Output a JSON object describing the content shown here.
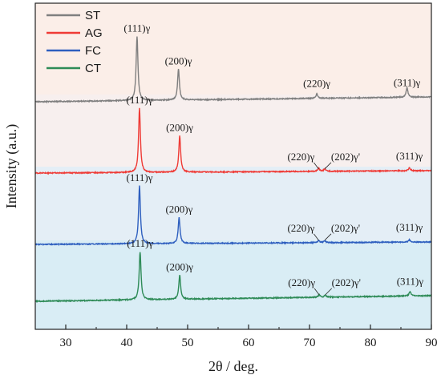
{
  "chart_data": {
    "type": "line",
    "xlabel": "2θ / deg.",
    "ylabel": "Intensity (a.u.)",
    "xlim": [
      25,
      90
    ],
    "xticks": [
      "30",
      "40",
      "50",
      "60",
      "70",
      "80",
      "90"
    ],
    "xtick_values": [
      30,
      40,
      50,
      60,
      70,
      80,
      90
    ],
    "legend_position": "top-left",
    "grid": false,
    "background_bands": [
      {
        "color": "#fbeee8",
        "behind": "ST"
      },
      {
        "color": "#f7efee",
        "behind": "AG"
      },
      {
        "color": "#e4eef6",
        "behind": "FC"
      },
      {
        "color": "#d9edf5",
        "behind": "CT"
      }
    ],
    "series": [
      {
        "name": "ST",
        "color": "#7f7f7f",
        "peaks": [
          {
            "x": 41.7,
            "label": "(111)γ",
            "height": 1.0
          },
          {
            "x": 48.5,
            "label": "(200)γ",
            "height": 0.48
          },
          {
            "x": 71.2,
            "label": "(220)γ",
            "height": 0.07
          },
          {
            "x": 86.0,
            "label": "(311)γ",
            "height": 0.15
          }
        ]
      },
      {
        "name": "AG",
        "color": "#ef3b36",
        "peaks": [
          {
            "x": 42.1,
            "label": "(111)γ",
            "height": 1.0
          },
          {
            "x": 48.7,
            "label": "(200)γ",
            "height": 0.57
          },
          {
            "x": 71.5,
            "label": "(220)γ",
            "height": 0.05
          },
          {
            "x": 72.5,
            "label": "(202)γ'",
            "height": 0.04
          },
          {
            "x": 86.4,
            "label": "(311)γ",
            "height": 0.05
          }
        ]
      },
      {
        "name": "FC",
        "color": "#2e5fbf",
        "peaks": [
          {
            "x": 42.1,
            "label": "(111)γ",
            "height": 1.0
          },
          {
            "x": 48.6,
            "label": "(200)γ",
            "height": 0.45
          },
          {
            "x": 71.5,
            "label": "(220)γ",
            "height": 0.04
          },
          {
            "x": 72.5,
            "label": "(202)γ'",
            "height": 0.03
          },
          {
            "x": 86.4,
            "label": "(311)γ",
            "height": 0.04
          }
        ]
      },
      {
        "name": "CT",
        "color": "#2e8b57",
        "peaks": [
          {
            "x": 42.2,
            "label": "(111)γ",
            "height": 1.0
          },
          {
            "x": 48.7,
            "label": "(200)γ",
            "height": 0.5
          },
          {
            "x": 71.6,
            "label": "(220)γ",
            "height": 0.05
          },
          {
            "x": 72.6,
            "label": "(202)γ'",
            "height": 0.04
          },
          {
            "x": 86.5,
            "label": "(311)γ",
            "height": 0.09
          }
        ]
      }
    ]
  }
}
